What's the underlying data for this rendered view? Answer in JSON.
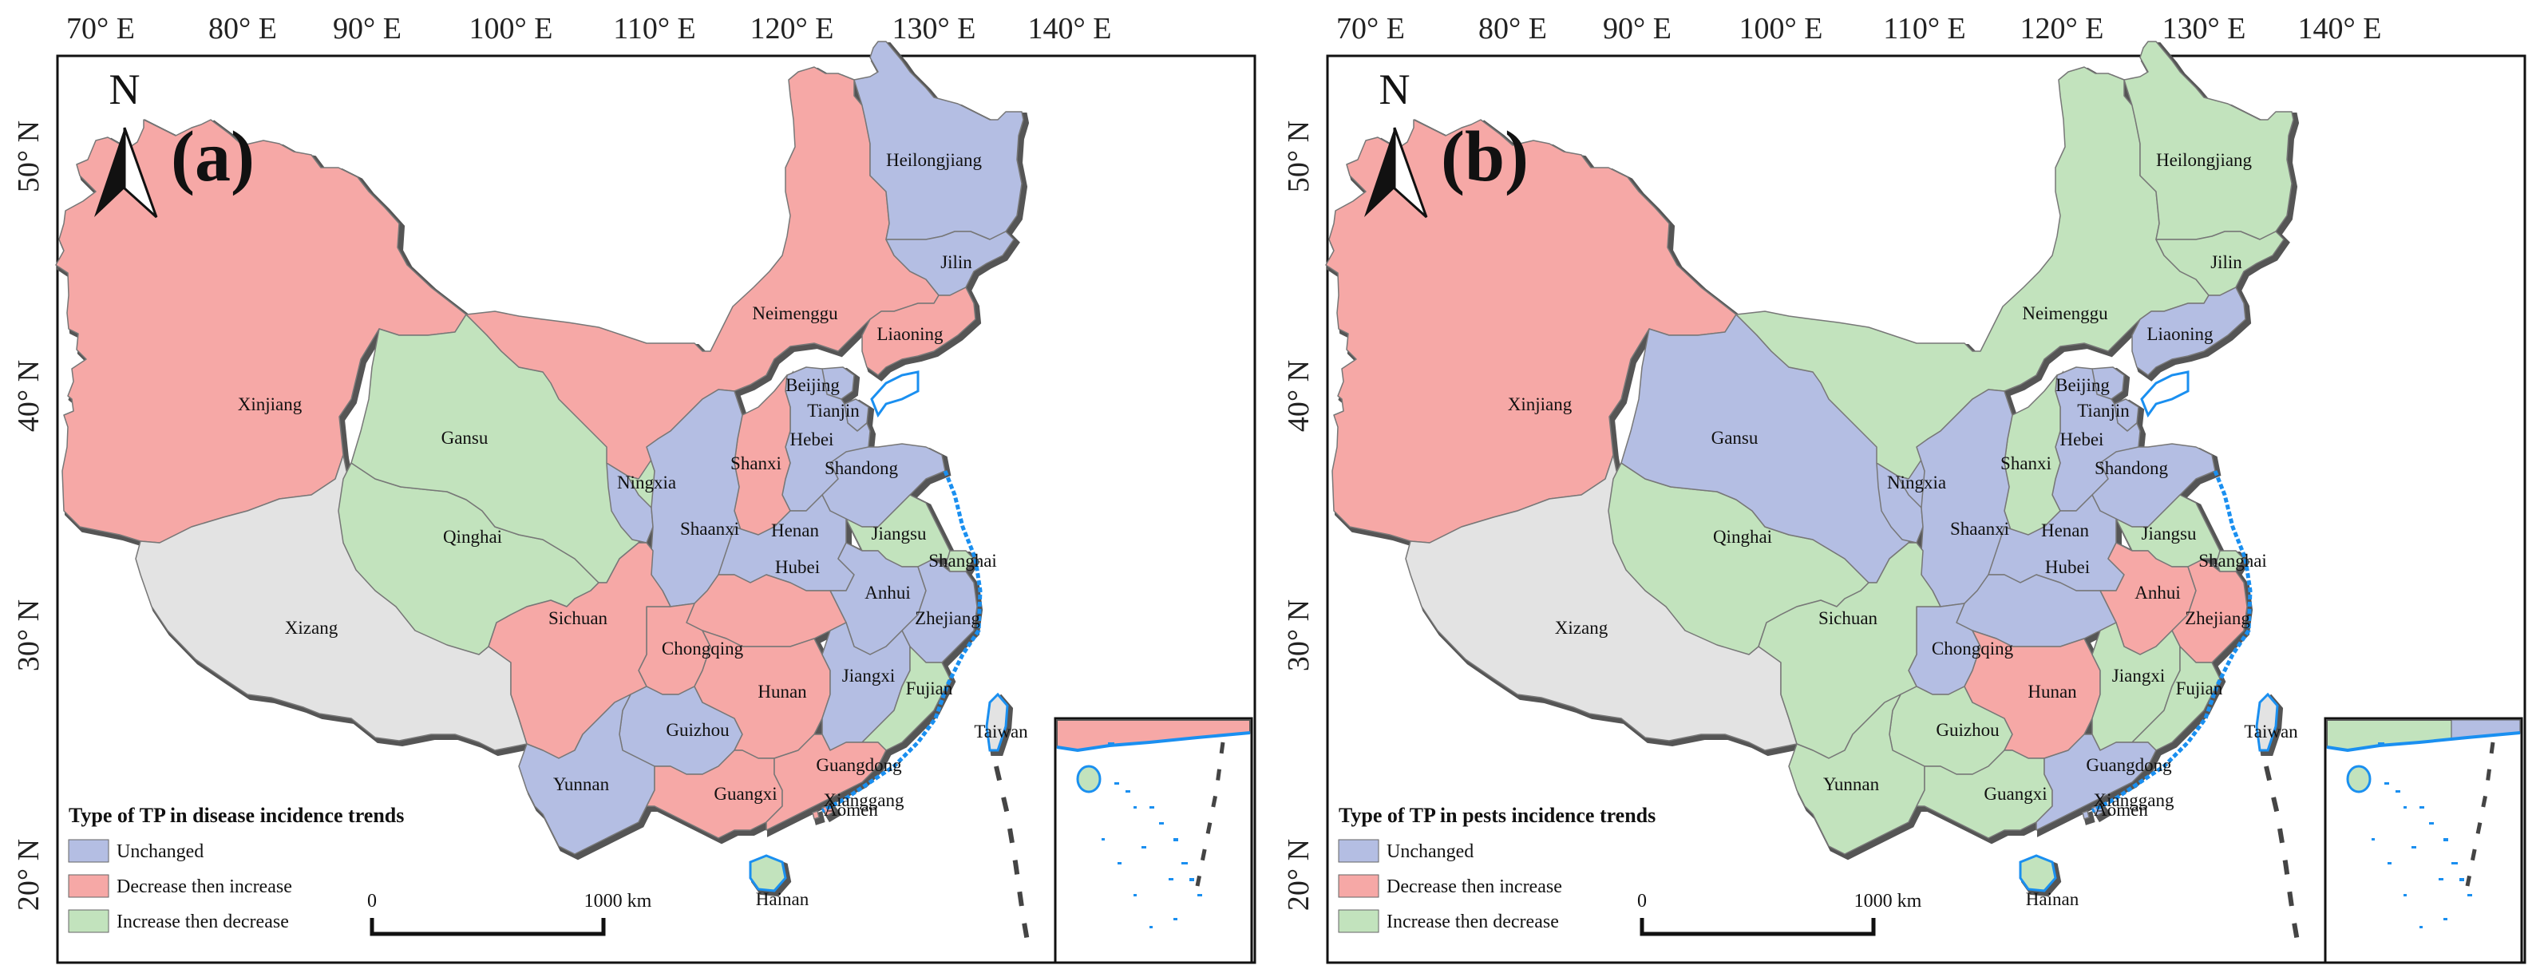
{
  "colors": {
    "unchanged": "#b4bee3",
    "decrease_then_increase": "#f6a8a6",
    "increase_then_decrease": "#c2e3bd",
    "no_data": "#e3e3e3",
    "coast": "#1a8ff0"
  },
  "axes": {
    "lon_ticks": [
      "70° E",
      "80° E",
      "90° E",
      "100° E",
      "110° E",
      "120° E",
      "130° E",
      "140° E"
    ],
    "lat_ticks": [
      "50° N",
      "40° N",
      "30° N",
      "20° N"
    ]
  },
  "scale": {
    "start": "0",
    "end": "1000 km"
  },
  "north_label": "N",
  "panels": [
    {
      "letter": "(a)",
      "legend": {
        "title": "Type of TP in disease incidence trends",
        "items": [
          "Unchanged",
          "Decrease then increase",
          "Increase then decrease"
        ]
      },
      "assignments": {
        "Heilongjiang": "unchanged",
        "Jilin": "unchanged",
        "Liaoning": "decrease_then_increase",
        "Neimenggu": "decrease_then_increase",
        "Beijing": "unchanged",
        "Tianjin": "unchanged",
        "Hebei": "unchanged",
        "Shandong": "unchanged",
        "Shanxi": "decrease_then_increase",
        "Ningxia": "unchanged",
        "Gansu": "increase_then_decrease",
        "Qinghai": "increase_then_decrease",
        "Xinjiang": "decrease_then_increase",
        "Xizang": "no_data",
        "Shaanxi": "unchanged",
        "Henan": "unchanged",
        "Jiangsu": "increase_then_decrease",
        "Shanghai": "increase_then_decrease",
        "Anhui": "unchanged",
        "Zhejiang": "unchanged",
        "Hubei": "decrease_then_increase",
        "Sichuan": "decrease_then_increase",
        "Chongqing": "decrease_then_increase",
        "Hunan": "decrease_then_increase",
        "Jiangxi": "unchanged",
        "Fujian": "increase_then_decrease",
        "Guizhou": "unchanged",
        "Yunnan": "unchanged",
        "Guangxi": "decrease_then_increase",
        "Guangdong": "decrease_then_increase",
        "Hainan": "increase_then_decrease",
        "Taiwan": "no_data",
        "Xianggang": "decrease_then_increase",
        "Aomen": "decrease_then_increase"
      }
    },
    {
      "letter": "(b)",
      "legend": {
        "title": "Type of TP in pests incidence trends",
        "items": [
          "Unchanged",
          "Decrease then increase",
          "Increase then decrease"
        ]
      },
      "assignments": {
        "Heilongjiang": "increase_then_decrease",
        "Jilin": "increase_then_decrease",
        "Liaoning": "unchanged",
        "Neimenggu": "increase_then_decrease",
        "Beijing": "unchanged",
        "Tianjin": "unchanged",
        "Hebei": "unchanged",
        "Shandong": "unchanged",
        "Shanxi": "increase_then_decrease",
        "Ningxia": "unchanged",
        "Gansu": "unchanged",
        "Qinghai": "increase_then_decrease",
        "Xinjiang": "decrease_then_increase",
        "Xizang": "no_data",
        "Shaanxi": "unchanged",
        "Henan": "unchanged",
        "Jiangsu": "increase_then_decrease",
        "Shanghai": "increase_then_decrease",
        "Anhui": "decrease_then_increase",
        "Zhejiang": "decrease_then_increase",
        "Hubei": "unchanged",
        "Sichuan": "increase_then_decrease",
        "Chongqing": "unchanged",
        "Hunan": "decrease_then_increase",
        "Jiangxi": "increase_then_decrease",
        "Fujian": "increase_then_decrease",
        "Guizhou": "increase_then_decrease",
        "Yunnan": "increase_then_decrease",
        "Guangxi": "increase_then_decrease",
        "Guangdong": "unchanged",
        "Hainan": "increase_then_decrease",
        "Taiwan": "no_data",
        "Xianggang": "unchanged",
        "Aomen": "unchanged"
      }
    }
  ]
}
